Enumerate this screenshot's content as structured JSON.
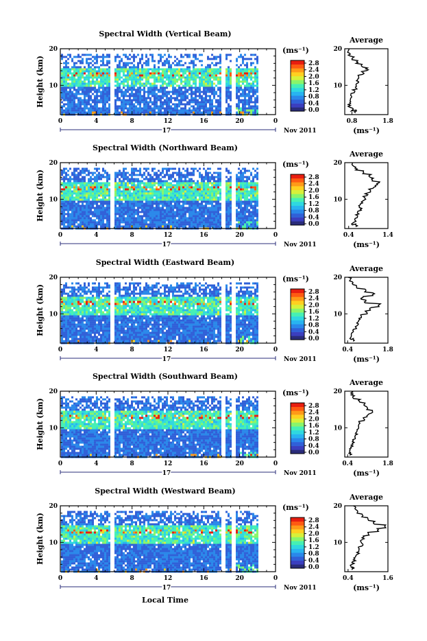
{
  "xlabel_bottom": "Local Time",
  "colorbar_ticks": [
    "0.0",
    "0.4",
    "0.8",
    "1.2",
    "1.6",
    "2.0",
    "2.4",
    "2.8"
  ],
  "colormap": [
    "#2a2c7a",
    "#3b3fbf",
    "#3060d8",
    "#2a88ea",
    "#28b4f0",
    "#2fd8e0",
    "#46f0b4",
    "#8af56a",
    "#d8f03a",
    "#ffd020",
    "#ff9a18",
    "#ff5a12",
    "#e81e10"
  ],
  "chart_data": [
    {
      "type": "heatmap",
      "title": "Spectral Width (Vertical Beam)",
      "ylabel": "Height (km)",
      "xticks": [
        "0",
        "4",
        "8",
        "12",
        "16",
        "20",
        "0"
      ],
      "yticks": [
        "10",
        "20"
      ],
      "date_day": "17",
      "date_month": "Nov 2011",
      "xlim": [
        0,
        24
      ],
      "ylim": [
        2,
        20
      ],
      "colorbar_unit": "(ms⁻¹)",
      "colorbar_range": [
        0,
        3.0
      ],
      "profile": {
        "title": "Average",
        "xlabel": "(ms⁻¹)",
        "xticks": [
          "0.8",
          "1.8"
        ],
        "xlim": [
          0.6,
          1.8
        ],
        "heights": [
          2.5,
          3,
          4,
          5,
          6,
          7,
          8,
          9,
          10,
          11,
          12,
          13,
          14,
          15,
          16,
          17,
          18,
          19,
          20
        ],
        "values": [
          0.9,
          0.8,
          0.72,
          0.75,
          0.78,
          0.8,
          0.85,
          0.9,
          0.95,
          0.95,
          1.0,
          1.1,
          1.22,
          1.1,
          0.95,
          0.82,
          0.72,
          0.7,
          0.7
        ]
      }
    },
    {
      "type": "heatmap",
      "title": "Spectral Width (Northward Beam)",
      "ylabel": "Height (km)",
      "xticks": [
        "0",
        "4",
        "8",
        "12",
        "16",
        "20",
        "0"
      ],
      "yticks": [
        "10",
        "20"
      ],
      "date_day": "17",
      "date_month": "Nov 2011",
      "xlim": [
        0,
        24
      ],
      "ylim": [
        2,
        20
      ],
      "colorbar_unit": "(ms⁻¹)",
      "colorbar_range": [
        0,
        3.0
      ],
      "profile": {
        "title": "Average",
        "xlabel": "(ms⁻¹)",
        "xticks": [
          "0.4",
          "1.4"
        ],
        "xlim": [
          0.3,
          1.4
        ],
        "heights": [
          2.5,
          3,
          4,
          5,
          6,
          7,
          8,
          9,
          10,
          11,
          12,
          13,
          14,
          15,
          16,
          17,
          18,
          19,
          20
        ],
        "values": [
          0.6,
          0.5,
          0.55,
          0.6,
          0.65,
          0.7,
          0.68,
          0.75,
          0.8,
          0.85,
          0.95,
          1.05,
          1.15,
          1.0,
          0.95,
          0.8,
          0.6,
          0.5,
          0.45
        ]
      }
    },
    {
      "type": "heatmap",
      "title": "Spectral Width (Eastward Beam)",
      "ylabel": "Height (km)",
      "xticks": [
        "0",
        "4",
        "8",
        "12",
        "16",
        "20",
        "0"
      ],
      "yticks": [
        "10",
        "20"
      ],
      "date_day": "17",
      "date_month": "Nov 2011",
      "xlim": [
        0,
        24
      ],
      "ylim": [
        2,
        20
      ],
      "colorbar_unit": "(ms⁻¹)",
      "colorbar_range": [
        0,
        3.0
      ],
      "profile": {
        "title": "Average",
        "xlabel": "(ms⁻¹)",
        "xticks": [
          "0.4",
          "1.8"
        ],
        "xlim": [
          0.3,
          1.8
        ],
        "heights": [
          2.5,
          3,
          4,
          5,
          6,
          7,
          8,
          9,
          10,
          11,
          12,
          13,
          14,
          15,
          16,
          17,
          18,
          19,
          20
        ],
        "values": [
          0.6,
          0.5,
          0.55,
          0.6,
          0.7,
          0.75,
          0.8,
          0.85,
          1.05,
          1.2,
          1.5,
          1.0,
          0.9,
          1.3,
          1.0,
          0.7,
          0.6,
          0.5,
          0.45
        ]
      }
    },
    {
      "type": "heatmap",
      "title": "Spectral Width (Southward Beam)",
      "ylabel": "Height (km)",
      "xticks": [
        "0",
        "4",
        "8",
        "12",
        "16",
        "20",
        "0"
      ],
      "yticks": [
        "10",
        "20"
      ],
      "date_day": "17",
      "date_month": "Nov 2011",
      "xlim": [
        0,
        24
      ],
      "ylim": [
        2,
        20
      ],
      "colorbar_unit": "(ms⁻¹)",
      "colorbar_range": [
        0,
        3.0
      ],
      "profile": {
        "title": "Average",
        "xlabel": "(ms⁻¹)",
        "xticks": [
          "0.4",
          "1.8"
        ],
        "xlim": [
          0.3,
          1.8
        ],
        "heights": [
          2.5,
          3,
          4,
          5,
          6,
          7,
          8,
          9,
          10,
          11,
          12,
          13,
          14,
          15,
          16,
          17,
          18,
          19,
          20
        ],
        "values": [
          0.5,
          0.45,
          0.5,
          0.55,
          0.6,
          0.65,
          0.7,
          0.75,
          0.75,
          0.8,
          0.95,
          1.1,
          1.25,
          1.1,
          1.0,
          0.8,
          0.6,
          0.55,
          0.5
        ]
      }
    },
    {
      "type": "heatmap",
      "title": "Spectral Width (Westward Beam)",
      "ylabel": "Height (km)",
      "xticks": [
        "0",
        "4",
        "8",
        "12",
        "16",
        "20",
        "0"
      ],
      "yticks": [
        "10",
        "20"
      ],
      "date_day": "17",
      "date_month": "Nov 2011",
      "xlim": [
        0,
        24
      ],
      "ylim": [
        2,
        20
      ],
      "colorbar_unit": "(ms⁻¹)",
      "colorbar_range": [
        0,
        3.0
      ],
      "profile": {
        "title": "Average",
        "xlabel": "(ms⁻¹)",
        "xticks": [
          "0.4",
          "1.6"
        ],
        "xlim": [
          0.3,
          1.6
        ],
        "heights": [
          2.5,
          3,
          4,
          5,
          6,
          7,
          8,
          9,
          10,
          11,
          12,
          13,
          14,
          15,
          16,
          17,
          18,
          19,
          20
        ],
        "values": [
          0.55,
          0.5,
          0.55,
          0.6,
          0.65,
          0.7,
          0.75,
          0.85,
          0.8,
          0.85,
          1.0,
          1.3,
          1.5,
          1.2,
          1.0,
          0.85,
          0.7,
          0.6,
          0.55
        ]
      }
    }
  ]
}
